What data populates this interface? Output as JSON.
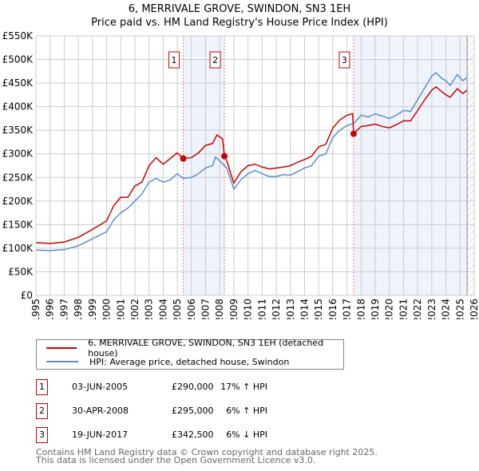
{
  "chart_data": {
    "type": "line",
    "title": "6, MERRIVALE GROVE, SWINDON, SN3 1EH",
    "subtitle": "Price paid vs. HM Land Registry's House Price Index (HPI)",
    "xlim": [
      1995,
      2026
    ],
    "ylim": [
      0,
      550000
    ],
    "y_ticks": [
      0,
      50000,
      100000,
      150000,
      200000,
      250000,
      300000,
      350000,
      400000,
      450000,
      500000,
      550000
    ],
    "y_tick_labels": [
      "£0",
      "£50K",
      "£100K",
      "£150K",
      "£200K",
      "£250K",
      "£300K",
      "£350K",
      "£400K",
      "£450K",
      "£500K",
      "£550K"
    ],
    "x_tick_labels": [
      "1995",
      "1996",
      "1997",
      "1998",
      "1999",
      "2000",
      "2001",
      "2002",
      "2003",
      "2004",
      "2005",
      "2006",
      "2007",
      "2008",
      "2009",
      "2010",
      "2011",
      "2012",
      "2013",
      "2014",
      "2015",
      "2016",
      "2017",
      "2018",
      "2019",
      "2020",
      "2021",
      "2022",
      "2023",
      "2024",
      "2025",
      "2026"
    ],
    "grid": true,
    "series": [
      {
        "name": "6, MERRIVALE GROVE, SWINDON, SN3 1EH (detached house)",
        "color": "#cc0000",
        "x": [
          1995,
          1996,
          1997,
          1998,
          1999,
          2000,
          2000.5,
          2001,
          2001.5,
          2002,
          2002.5,
          2003,
          2003.5,
          2004,
          2004.5,
          2005,
          2005.42,
          2006,
          2006.5,
          2007,
          2007.5,
          2007.8,
          2008.2,
          2008.33,
          2008.5,
          2009,
          2009.5,
          2010,
          2010.5,
          2011,
          2011.5,
          2012,
          2012.5,
          2013,
          2013.5,
          2014,
          2014.5,
          2015,
          2015.5,
          2016,
          2016.5,
          2017,
          2017.4,
          2017.47,
          2018,
          2018.5,
          2019,
          2019.5,
          2020,
          2020.5,
          2021,
          2021.5,
          2022,
          2022.5,
          2023,
          2023.3,
          2023.7,
          2024,
          2024.3,
          2024.8,
          2025.2,
          2025.5
        ],
        "y": [
          112,
          110,
          113,
          123,
          140,
          158,
          190,
          208,
          208,
          232,
          240,
          275,
          292,
          278,
          290,
          302,
          290,
          292,
          302,
          318,
          322,
          340,
          332,
          295,
          285,
          238,
          262,
          275,
          278,
          272,
          268,
          270,
          272,
          275,
          282,
          288,
          295,
          315,
          320,
          355,
          372,
          382,
          385,
          342.5,
          358,
          360,
          363,
          358,
          355,
          362,
          370,
          370,
          392,
          415,
          435,
          442,
          432,
          425,
          420,
          438,
          428,
          435
        ]
      },
      {
        "name": "HPI: Average price, detached house, Swindon",
        "color": "#5b8fd0",
        "x": [
          1995,
          1996,
          1997,
          1998,
          1999,
          2000,
          2000.5,
          2001,
          2001.5,
          2002,
          2002.5,
          2003,
          2003.5,
          2004,
          2004.5,
          2005,
          2005.42,
          2006,
          2006.5,
          2007,
          2007.5,
          2007.7,
          2008,
          2008.5,
          2009,
          2009.5,
          2010,
          2010.5,
          2011,
          2011.5,
          2012,
          2012.5,
          2013,
          2013.5,
          2014,
          2014.5,
          2015,
          2015.5,
          2016,
          2016.5,
          2017,
          2017.5,
          2018,
          2018.5,
          2019,
          2019.5,
          2020,
          2020.5,
          2021,
          2021.5,
          2022,
          2022.5,
          2023,
          2023.3,
          2023.7,
          2024,
          2024.3,
          2024.8,
          2025.2,
          2025.5
        ],
        "y": [
          96,
          95,
          97,
          105,
          120,
          135,
          160,
          175,
          185,
          200,
          215,
          240,
          248,
          240,
          245,
          258,
          248,
          250,
          258,
          270,
          275,
          293,
          285,
          270,
          225,
          245,
          258,
          265,
          258,
          252,
          252,
          256,
          255,
          262,
          270,
          275,
          295,
          300,
          335,
          350,
          360,
          365,
          382,
          378,
          385,
          380,
          375,
          382,
          392,
          390,
          415,
          440,
          465,
          472,
          460,
          455,
          445,
          468,
          455,
          462
        ]
      }
    ],
    "y_units": "thousands GBP",
    "sales": [
      {
        "label": "1",
        "x": 2005.42,
        "y": 290,
        "date": "03-JUN-2005",
        "price": "£290,000",
        "hpi": "17% ↑ HPI"
      },
      {
        "label": "2",
        "x": 2008.33,
        "y": 295,
        "date": "30-APR-2008",
        "price": "£295,000",
        "hpi": "6% ↑ HPI"
      },
      {
        "label": "3",
        "x": 2017.47,
        "y": 342.5,
        "date": "19-JUN-2017",
        "price": "£342,500",
        "hpi": "6% ↓ HPI"
      }
    ],
    "shaded_ranges": [
      [
        2005.42,
        2008.33
      ],
      [
        2017.47,
        2025.5
      ]
    ],
    "forecast_from": 2025.5
  },
  "footer": {
    "line1": "Contains HM Land Registry data © Crown copyright and database right 2025.",
    "line2": "This data is licensed under the Open Government Licence v3.0."
  }
}
